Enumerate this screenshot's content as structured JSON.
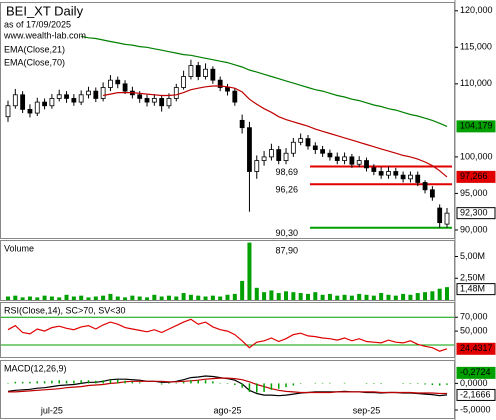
{
  "chart_data": [
    {
      "type": "candlestick",
      "title": "BEI_XT Daily",
      "subtitle": "as of 17/09/2025",
      "source": "www.wealth-lab.com",
      "categories": [
        null,
        null,
        null,
        null,
        null,
        null,
        "jul-25",
        null,
        null,
        null,
        null,
        null,
        null,
        null,
        null,
        null,
        null,
        null,
        null,
        null,
        null,
        null,
        null,
        null,
        null,
        null,
        null,
        null,
        null,
        null,
        "ago-25",
        null,
        null,
        null,
        null,
        null,
        null,
        null,
        null,
        null,
        null,
        null,
        null,
        null,
        null,
        null,
        null,
        null,
        null,
        "sep-25",
        null,
        null,
        null,
        null,
        null,
        null,
        null,
        null,
        null,
        null,
        null
      ],
      "open": [
        105.5,
        107.0,
        108.5,
        106.5,
        106.0,
        107.5,
        107.0,
        108.0,
        108.5,
        108.0,
        107.5,
        108.5,
        109.0,
        108.0,
        109.5,
        110.5,
        110.0,
        109.0,
        108.5,
        108.0,
        107.5,
        108.0,
        107.0,
        108.0,
        109.5,
        111.0,
        112.5,
        111.0,
        112.0,
        110.5,
        109.5,
        109.0,
        105.0,
        104.0,
        98.0,
        99.5,
        100.0,
        101.0,
        99.5,
        100.5,
        102.0,
        102.5,
        101.5,
        101.0,
        100.5,
        100.0,
        99.5,
        100.0,
        99.0,
        99.5,
        98.5,
        98.0,
        97.5,
        98.0,
        97.5,
        97.0,
        97.5,
        96.5,
        95.5,
        93.0,
        90.8
      ],
      "high": [
        107.7,
        109.3,
        109.0,
        107.2,
        108.1,
        108.0,
        108.6,
        109.2,
        109.0,
        108.6,
        109.1,
        109.6,
        109.5,
        110.2,
        111.2,
        111.0,
        110.5,
        109.6,
        109.0,
        108.5,
        108.6,
        108.4,
        108.7,
        110.0,
        111.8,
        113.3,
        113.0,
        112.8,
        112.4,
        111.0,
        110.0,
        109.4,
        105.8,
        104.8,
        100.2,
        100.8,
        101.8,
        101.5,
        101.2,
        102.6,
        103.2,
        103.0,
        102.0,
        101.5,
        101.0,
        100.6,
        100.6,
        100.4,
        100.1,
        99.9,
        99.0,
        98.6,
        98.69,
        98.5,
        98.0,
        98.0,
        98.0,
        96.8,
        96.0,
        93.5,
        93.0
      ],
      "low": [
        104.8,
        106.6,
        106.0,
        105.4,
        105.6,
        106.5,
        106.6,
        107.6,
        107.4,
        107.0,
        107.1,
        108.0,
        107.5,
        107.6,
        109.0,
        109.4,
        108.6,
        108.0,
        107.4,
        106.9,
        107.0,
        106.2,
        106.6,
        107.6,
        109.2,
        110.6,
        110.5,
        110.6,
        110.0,
        109.0,
        108.4,
        107.0,
        103.2,
        92.5,
        97.0,
        98.8,
        99.5,
        99.0,
        99.0,
        100.0,
        101.6,
        101.0,
        100.4,
        100.0,
        99.5,
        99.0,
        99.0,
        98.5,
        98.6,
        98.0,
        97.5,
        97.0,
        97.0,
        97.0,
        96.5,
        96.5,
        96.0,
        95.0,
        94.0,
        90.3,
        90.3
      ],
      "close": [
        107.0,
        108.5,
        106.5,
        106.0,
        107.5,
        107.0,
        108.0,
        108.5,
        108.0,
        107.5,
        108.5,
        109.0,
        108.0,
        109.5,
        110.5,
        110.0,
        109.0,
        108.5,
        108.0,
        107.5,
        108.0,
        107.0,
        108.0,
        109.5,
        111.0,
        112.5,
        111.0,
        112.0,
        110.5,
        109.5,
        109.0,
        107.5,
        104.0,
        98.0,
        99.5,
        100.0,
        101.0,
        99.5,
        100.5,
        102.0,
        102.5,
        101.5,
        101.0,
        100.5,
        100.0,
        99.5,
        100.0,
        99.0,
        99.5,
        98.5,
        98.0,
        97.5,
        98.0,
        97.5,
        97.0,
        97.5,
        96.5,
        95.5,
        94.5,
        91.0,
        92.3
      ],
      "color_up": "#ffffff",
      "color_down": "#000000",
      "close_badge": {
        "value": 92.3,
        "label": "92,300"
      },
      "series": [
        {
          "name": "EMA(Close,21)",
          "color": "#c00000",
          "values": [
            null,
            null,
            null,
            null,
            null,
            null,
            null,
            null,
            null,
            null,
            null,
            null,
            null,
            108.4,
            108.6,
            108.8,
            108.8,
            108.8,
            108.7,
            108.6,
            108.5,
            108.4,
            108.4,
            108.5,
            108.8,
            109.2,
            109.4,
            109.6,
            109.7,
            109.7,
            109.6,
            109.4,
            108.9,
            107.9,
            107.2,
            106.6,
            106.1,
            105.5,
            105.1,
            104.8,
            104.5,
            104.2,
            103.8,
            103.5,
            103.2,
            102.9,
            102.6,
            102.3,
            102.0,
            101.7,
            101.4,
            101.1,
            100.8,
            100.5,
            100.2,
            100.0,
            99.7,
            99.3,
            98.8,
            98.1,
            97.266
          ],
          "badge": {
            "value": 97.266,
            "label": "97,266",
            "color": "#e00000"
          }
        },
        {
          "name": "EMA(Close,70)",
          "color": "#008000",
          "values": [
            null,
            null,
            null,
            null,
            null,
            null,
            null,
            null,
            null,
            null,
            116.5,
            116.3,
            116.2,
            116.0,
            115.8,
            115.6,
            115.4,
            115.3,
            115.1,
            115.0,
            114.8,
            114.6,
            114.4,
            114.2,
            114.0,
            113.9,
            113.7,
            113.5,
            113.3,
            113.1,
            112.9,
            112.6,
            112.3,
            111.9,
            111.6,
            111.3,
            111.0,
            110.7,
            110.4,
            110.1,
            109.8,
            109.5,
            109.2,
            109.0,
            108.7,
            108.4,
            108.2,
            107.9,
            107.7,
            107.4,
            107.1,
            106.9,
            106.6,
            106.4,
            106.1,
            105.8,
            105.6,
            105.3,
            105.0,
            104.6,
            104.179
          ],
          "badge": {
            "value": 104.179,
            "label": "104,179",
            "color": "#00a000"
          }
        }
      ],
      "levels": [
        {
          "value": 98.69,
          "label": "98,69",
          "color": "#e00000"
        },
        {
          "value": 96.26,
          "label": "96,26",
          "color": "#e00000"
        },
        {
          "value": 90.3,
          "label": "90,30",
          "color": "#00a000"
        },
        {
          "value": 87.9,
          "label": "87,90"
        }
      ],
      "ylim": [
        88.9,
        121.2
      ],
      "yticks": [
        {
          "value": 120,
          "label": "120,000"
        },
        {
          "value": 115,
          "label": "115,000"
        },
        {
          "value": 110,
          "label": "110,000"
        },
        {
          "value": 100,
          "label": "100,000"
        },
        {
          "value": 95,
          "label": "95,000"
        },
        {
          "value": 90,
          "label": "90,000"
        }
      ]
    },
    {
      "type": "bar",
      "title": "Volume",
      "color": "#00a000",
      "values": [
        0.4,
        0.5,
        0.3,
        0.4,
        0.3,
        0.5,
        0.4,
        0.3,
        0.6,
        0.4,
        0.5,
        0.3,
        0.4,
        0.5,
        0.7,
        0.4,
        0.3,
        0.5,
        0.4,
        0.3,
        0.6,
        0.4,
        0.5,
        0.4,
        0.8,
        0.6,
        0.5,
        0.4,
        0.5,
        0.4,
        0.6,
        0.7,
        2.2,
        6.6,
        1.4,
        0.9,
        1.1,
        0.8,
        1.0,
        0.9,
        0.8,
        0.7,
        0.9,
        0.6,
        0.7,
        0.5,
        0.6,
        0.5,
        0.7,
        0.6,
        0.5,
        0.8,
        0.6,
        0.5,
        0.7,
        0.6,
        0.8,
        0.9,
        1.0,
        1.3,
        1.48
      ],
      "badge": {
        "value": 1.48,
        "label": "1,48M"
      },
      "ylim": [
        0,
        6.9
      ],
      "yticks": [
        {
          "value": 5,
          "label": "5,00M"
        },
        {
          "value": 2.5,
          "label": "2,50M"
        }
      ]
    },
    {
      "type": "line",
      "title": "RSI(Close,14), SC>70, SV<30",
      "series": [
        {
          "color": "#e00000",
          "values": [
            52,
            58,
            48,
            46,
            53,
            50,
            55,
            57,
            54,
            52,
            56,
            58,
            53,
            59,
            63,
            60,
            55,
            53,
            51,
            49,
            52,
            48,
            53,
            58,
            63,
            67,
            60,
            63,
            56,
            52,
            50,
            45,
            36,
            26,
            34,
            36,
            40,
            35,
            39,
            45,
            47,
            43,
            42,
            40,
            39,
            37,
            40,
            36,
            39,
            35,
            34,
            33,
            37,
            34,
            33,
            36,
            31,
            28,
            26,
            21,
            24.4317
          ],
          "badge": {
            "value": 24.4317,
            "label": "24,4317",
            "color": "#e00000"
          }
        }
      ],
      "levels": [
        70,
        30
      ],
      "level_color": "#00a000",
      "ylim": [
        12.6,
        92
      ],
      "yticks": [
        {
          "value": 70,
          "label": "70,000"
        },
        {
          "value": 50,
          "label": "50,000"
        }
      ]
    },
    {
      "type": "line",
      "title": "MACD(12,26,9)",
      "series": [
        {
          "color": "#000000",
          "values": [
            -1.5,
            -1.3,
            -1.2,
            -1.1,
            -0.9,
            -0.8,
            -0.6,
            -0.4,
            -0.3,
            -0.2,
            0.0,
            0.2,
            0.2,
            0.4,
            0.7,
            0.8,
            0.8,
            0.7,
            0.6,
            0.4,
            0.4,
            0.2,
            0.2,
            0.4,
            0.7,
            1.1,
            1.2,
            1.4,
            1.3,
            1.1,
            0.9,
            0.6,
            -0.1,
            -1.3,
            -1.9,
            -2.2,
            -2.2,
            -2.3,
            -2.2,
            -2.0,
            -1.8,
            -1.7,
            -1.6,
            -1.6,
            -1.6,
            -1.6,
            -1.5,
            -1.6,
            -1.6,
            -1.7,
            -1.7,
            -1.8,
            -1.7,
            -1.7,
            -1.8,
            -1.8,
            -1.9,
            -2.0,
            -2.1,
            -2.3,
            -2.1666
          ],
          "badge": {
            "value": -2.1666,
            "label": "-2,1666"
          }
        },
        {
          "color": "#c00000",
          "values": [
            -1.6,
            -1.6,
            -1.5,
            -1.4,
            -1.3,
            -1.2,
            -1.1,
            -1.0,
            -0.8,
            -0.7,
            -0.6,
            -0.4,
            -0.3,
            -0.2,
            0.0,
            0.1,
            0.3,
            0.4,
            0.4,
            0.4,
            0.4,
            0.4,
            0.3,
            0.3,
            0.4,
            0.5,
            0.6,
            0.8,
            0.9,
            1.0,
            1.0,
            0.9,
            0.7,
            0.3,
            -0.2,
            -0.6,
            -1.0,
            -1.3,
            -1.5,
            -1.6,
            -1.7,
            -1.7,
            -1.7,
            -1.7,
            -1.7,
            -1.6,
            -1.6,
            -1.6,
            -1.6,
            -1.6,
            -1.6,
            -1.7,
            -1.7,
            -1.7,
            -1.7,
            -1.7,
            -1.8,
            -1.8,
            -1.8,
            -1.9,
            -1.894
          ]
        },
        {
          "color": "#00a000",
          "style": "bar",
          "values": [
            0.1,
            0.3,
            0.3,
            0.3,
            0.4,
            0.4,
            0.5,
            0.6,
            0.5,
            0.5,
            0.6,
            0.6,
            0.5,
            0.6,
            0.7,
            0.7,
            0.5,
            0.3,
            0.2,
            0.0,
            0.0,
            -0.2,
            -0.1,
            0.1,
            0.3,
            0.6,
            0.6,
            0.6,
            0.4,
            0.1,
            -0.1,
            -0.3,
            -0.8,
            -1.6,
            -1.7,
            -1.6,
            -1.2,
            -1.0,
            -0.7,
            -0.4,
            -0.1,
            0.0,
            0.1,
            0.1,
            0.1,
            0.0,
            0.1,
            0.0,
            0.0,
            -0.1,
            -0.1,
            -0.1,
            0.0,
            0.0,
            -0.1,
            -0.1,
            -0.1,
            -0.2,
            -0.3,
            -0.4,
            -0.2724
          ],
          "badge": {
            "value": -0.2724,
            "label": "-0,2724",
            "color": "#00a000"
          }
        }
      ],
      "ylim": [
        -6.5,
        4.4
      ],
      "yticks": [
        {
          "value": 0,
          "label": "0,0000"
        },
        {
          "value": -5,
          "label": "-5,0000"
        }
      ]
    }
  ]
}
